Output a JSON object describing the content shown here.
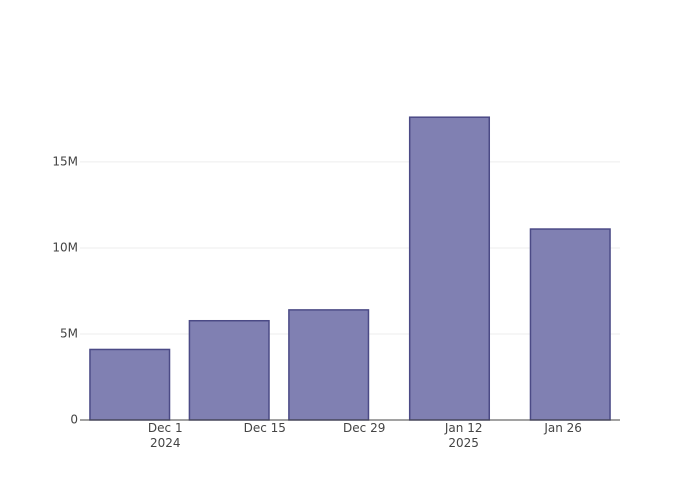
{
  "chart_data": {
    "type": "bar",
    "x": [
      "2024-11-26",
      "2024-12-10",
      "2024-12-24",
      "2025-01-10",
      "2025-01-27"
    ],
    "values": [
      4100000,
      5770000,
      6400000,
      17600000,
      11100000
    ],
    "color": "#8080b2",
    "line_color": "#4b4a86",
    "xlim": [
      "2024-11-19",
      "2025-02-03"
    ],
    "xticks": [
      {
        "value": "2024-12-01",
        "label": "Dec 1\n2024"
      },
      {
        "value": "2024-12-15",
        "label": "Dec 15"
      },
      {
        "value": "2024-12-29",
        "label": "Dec 29"
      },
      {
        "value": "2025-01-12",
        "label": "Jan 12\n2025"
      },
      {
        "value": "2025-01-26",
        "label": "Jan 26"
      }
    ],
    "ylim": [
      0,
      18600000
    ],
    "yticks": [
      0,
      {
        "value": 5000000,
        "label": "5M"
      },
      {
        "value": 10000000,
        "label": "10M"
      },
      {
        "value": 15000000,
        "label": "15M"
      }
    ],
    "grid": true
  }
}
